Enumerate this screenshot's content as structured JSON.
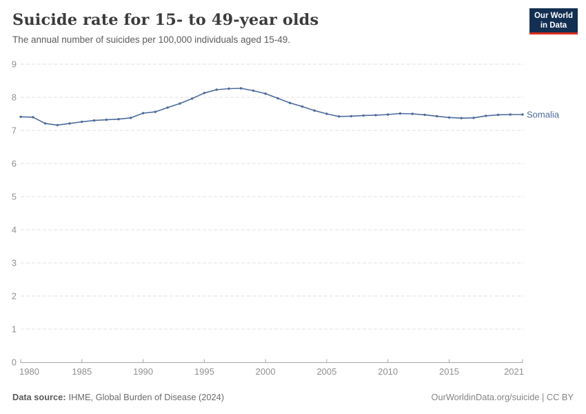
{
  "header": {
    "title": "Suicide rate for 15- to 49-year olds",
    "subtitle": "The annual number of suicides per 100,000 individuals aged 15-49.",
    "logo": {
      "line1": "Our World",
      "line2": "in Data"
    }
  },
  "footer": {
    "source_label": "Data source:",
    "source_value": "IHME, Global Burden of Disease (2024)",
    "attribution": "OurWorldinData.org/suicide | CC BY"
  },
  "colors": {
    "line": "#4C6A9C",
    "entity_label": "#4C6A9C",
    "grid": "#e2e2e2",
    "axis": "#a6a6a6",
    "tick_text": "#8f8f8f",
    "logo_bg": "#132f52",
    "logo_bar": "#dc2e1c"
  },
  "chart_data": {
    "type": "line",
    "title": "Suicide rate for 15- to 49-year olds",
    "subtitle": "The annual number of suicides per 100,000 individuals aged 15-49.",
    "xlabel": "",
    "ylabel": "",
    "xlim": [
      1980,
      2021
    ],
    "ylim": [
      0,
      9
    ],
    "x_ticks": [
      1980,
      1985,
      1990,
      1995,
      2000,
      2005,
      2010,
      2015,
      2021
    ],
    "y_ticks": [
      0,
      1,
      2,
      3,
      4,
      5,
      6,
      7,
      8,
      9
    ],
    "grid": "horizontal-dashed",
    "legend_position": "end-of-line-label",
    "series": [
      {
        "name": "Somalia",
        "color": "#4C6A9C",
        "x": [
          1980,
          1981,
          1982,
          1983,
          1984,
          1985,
          1986,
          1987,
          1988,
          1989,
          1990,
          1991,
          1992,
          1993,
          1994,
          1995,
          1996,
          1997,
          1998,
          1999,
          2000,
          2001,
          2002,
          2003,
          2004,
          2005,
          2006,
          2007,
          2008,
          2009,
          2010,
          2011,
          2012,
          2013,
          2014,
          2015,
          2016,
          2017,
          2018,
          2019,
          2020,
          2021
        ],
        "values": [
          7.41,
          7.4,
          7.21,
          7.16,
          7.21,
          7.26,
          7.3,
          7.32,
          7.34,
          7.38,
          7.52,
          7.56,
          7.69,
          7.81,
          7.96,
          8.13,
          8.23,
          8.26,
          8.27,
          8.2,
          8.11,
          7.97,
          7.83,
          7.72,
          7.6,
          7.5,
          7.42,
          7.43,
          7.45,
          7.46,
          7.48,
          7.51,
          7.5,
          7.47,
          7.43,
          7.39,
          7.37,
          7.38,
          7.44,
          7.47,
          7.48,
          7.48
        ]
      }
    ]
  }
}
